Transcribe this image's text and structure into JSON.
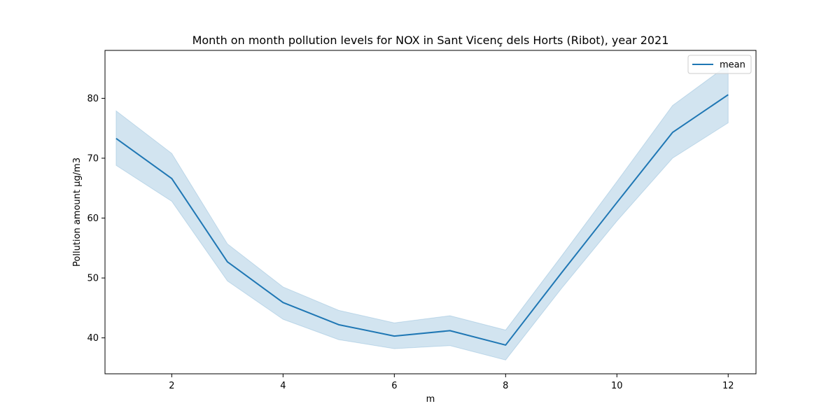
{
  "chart_data": {
    "type": "line",
    "title": "Month on month pollution levels for NOX in Sant Vicenç dels Horts (Ribot), year 2021",
    "xlabel": "m",
    "ylabel": "Pollution amount μg/m3",
    "xlim": [
      0.8,
      12.5
    ],
    "ylim": [
      34,
      88
    ],
    "xticks": [
      2,
      4,
      6,
      8,
      10,
      12
    ],
    "yticks": [
      40,
      50,
      60,
      70,
      80
    ],
    "grid": false,
    "legend_position": "top-right",
    "colors": {
      "line": "#1f77b4",
      "band": "#1f77b4"
    },
    "series": [
      {
        "name": "mean",
        "x": [
          1,
          2,
          3,
          4,
          5,
          6,
          7,
          8,
          9,
          10,
          11,
          12
        ],
        "y": [
          73.3,
          66.6,
          52.7,
          45.9,
          42.2,
          40.3,
          41.2,
          38.8,
          50.8,
          62.6,
          74.3,
          80.6
        ],
        "lower": [
          68.8,
          62.8,
          49.5,
          43.1,
          39.7,
          38.2,
          38.7,
          36.3,
          48.2,
          59.5,
          70.0,
          75.9
        ],
        "upper": [
          77.9,
          70.8,
          55.7,
          48.5,
          44.6,
          42.5,
          43.7,
          41.3,
          53.6,
          66.1,
          78.8,
          85.6
        ]
      }
    ]
  }
}
